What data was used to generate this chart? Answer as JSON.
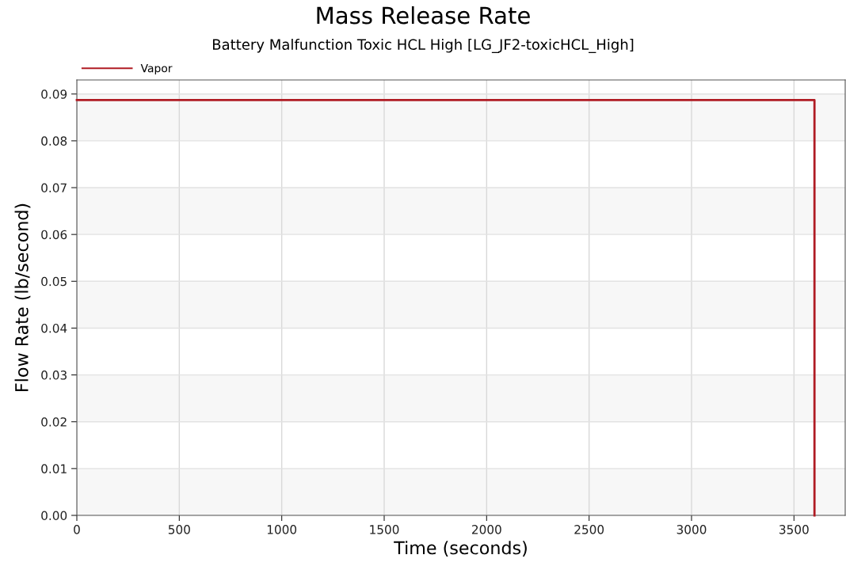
{
  "chart_data": {
    "type": "step",
    "title": "Mass Release Rate",
    "subtitle": "Battery Malfunction Toxic HCL High [LG_JF2-toxicHCL_High]",
    "xlabel": "Time (seconds)",
    "ylabel": "Flow Rate (lb/second)",
    "series": [
      {
        "name": "Vapor",
        "color": "#b01c24",
        "values": [
          0.0887,
          0
        ]
      }
    ],
    "x": [
      0,
      3600
    ],
    "xlim": [
      0,
      3750
    ],
    "xticks": [
      0,
      500,
      1000,
      1500,
      2000,
      2500,
      3000,
      3500
    ],
    "ylim": [
      0,
      0.093
    ],
    "yticks": [
      {
        "value": 0,
        "label": "0.00"
      },
      {
        "value": 0.01,
        "label": "0.01"
      },
      {
        "value": 0.02,
        "label": "0.02"
      },
      {
        "value": 0.03,
        "label": "0.03"
      },
      {
        "value": 0.04,
        "label": "0.04"
      },
      {
        "value": 0.05,
        "label": "0.05"
      },
      {
        "value": 0.06,
        "label": "0.06"
      },
      {
        "value": 0.07,
        "label": "0.07"
      },
      {
        "value": 0.08,
        "label": "0.08"
      },
      {
        "value": 0.09,
        "label": "0.09"
      }
    ],
    "grid": true,
    "legend": "top left",
    "marker": "none",
    "line_style": "solid"
  }
}
